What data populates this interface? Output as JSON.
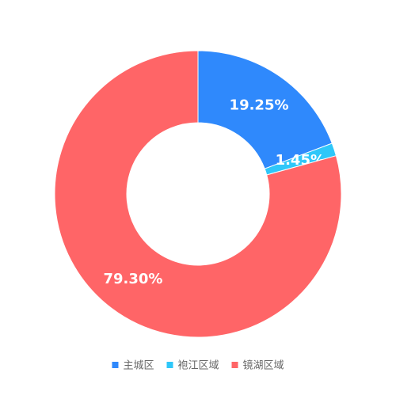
{
  "chart_data": {
    "type": "donut",
    "categories": [
      "主城区",
      "袍江区域",
      "镜湖区域"
    ],
    "values": [
      19.25,
      1.45,
      79.3
    ],
    "value_labels": [
      "19.25%",
      "1.45%",
      "79.30%"
    ],
    "colors": [
      "#2f89fc",
      "#2ec7f9",
      "#ff6567"
    ],
    "legend": "bottom"
  }
}
